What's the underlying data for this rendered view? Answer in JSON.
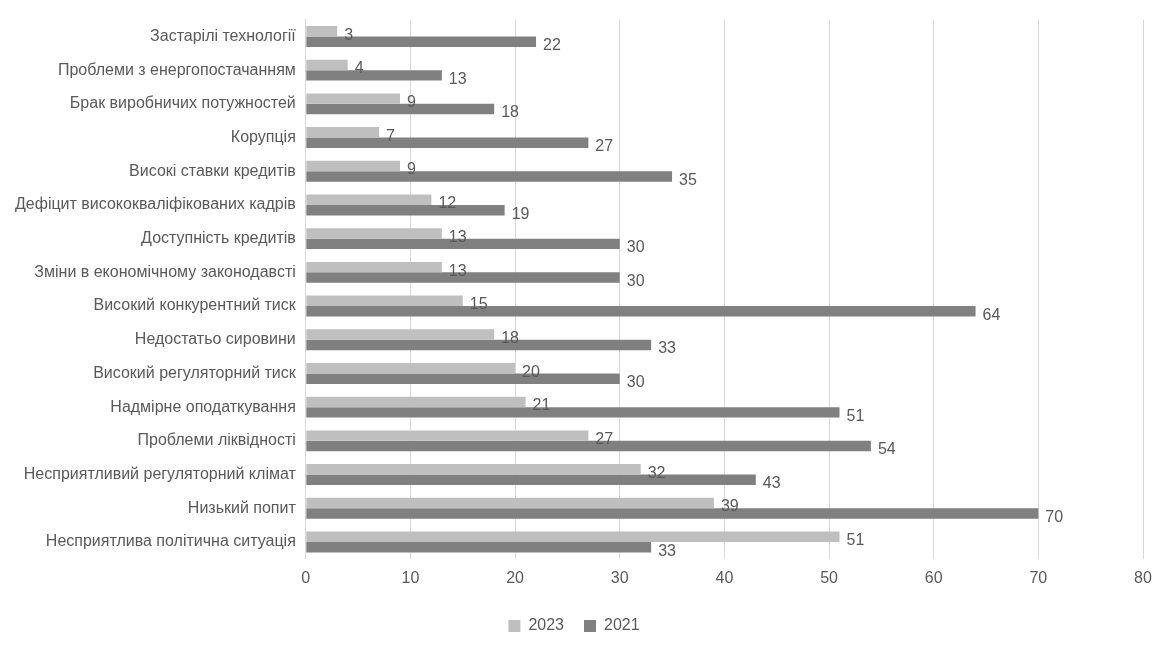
{
  "chart_data": {
    "type": "bar",
    "orientation": "horizontal",
    "categories": [
      "Застарілі технології",
      "Проблеми з енергопостачанням",
      "Брак виробничих потужностей",
      "Корупція",
      "Високі ставки кредитів",
      "Дефіцит висококваліфікованих кадрів",
      "Доступність кредитів",
      "Зміни в економічному законодавсті",
      "Високий конкурентний тиск",
      "Недостатьо сировини",
      "Високий регуляторний тиск",
      "Надмірне оподаткування",
      "Проблеми ліквідності",
      "Несприятливий регуляторний клімат",
      "Низький попит",
      "Несприятлива політична ситуація"
    ],
    "series": [
      {
        "name": "2023",
        "color": "#bfbfbf",
        "values": [
          3,
          4,
          9,
          7,
          9,
          12,
          13,
          13,
          15,
          18,
          20,
          21,
          27,
          32,
          39,
          51
        ]
      },
      {
        "name": "2021",
        "color": "#808080",
        "values": [
          22,
          13,
          18,
          27,
          35,
          19,
          30,
          30,
          64,
          33,
          30,
          51,
          54,
          43,
          70,
          33
        ]
      }
    ],
    "xlim": [
      0,
      80
    ],
    "xticks": [
      0,
      10,
      20,
      30,
      40,
      50,
      60,
      70,
      80
    ],
    "grid": "x",
    "legend": "bottom",
    "data_labels": true
  }
}
